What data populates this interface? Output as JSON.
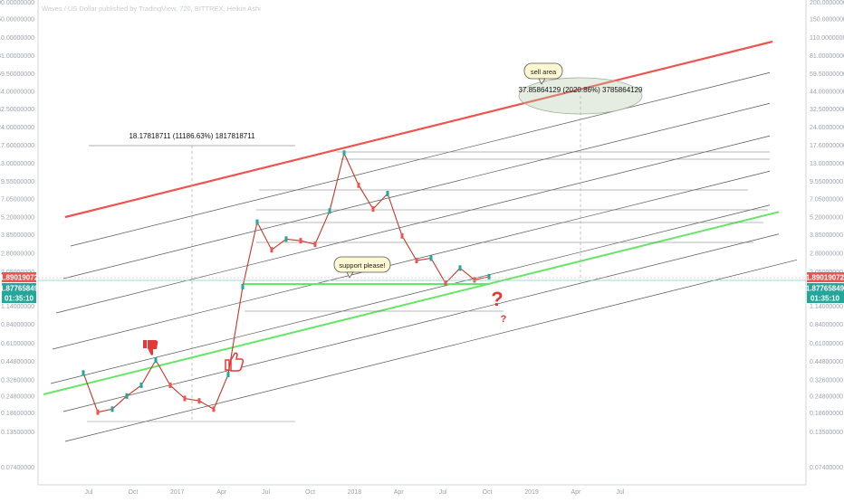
{
  "chart_data": {
    "type": "line",
    "title": "Waves / US Dollar published by TradingView, 720, BITTREX, Heikin Ashi",
    "y_scale": "log",
    "y_axis_ticks": [
      "0.07400000",
      "0.13500000",
      "0.18600000",
      "0.24800000",
      "0.32600000",
      "0.44800000",
      "0.61000000",
      "0.84000000",
      "1.14000000",
      "1.55000000",
      "2.05000000",
      "2.80000000",
      "3.85000000",
      "5.20000000",
      "7.05000000",
      "9.55000000",
      "13.00000000",
      "17.60000000",
      "24.00000000",
      "32.50000000",
      "44.00000000",
      "59.50000000",
      "81.00000000",
      "110.00000000",
      "150.00000000",
      "200.00000000"
    ],
    "x_axis_ticks": [
      "Jul",
      "Oct",
      "2017",
      "Apr",
      "Jul",
      "Oct",
      "2018",
      "Apr",
      "Jul",
      "Oct",
      "2019",
      "Apr",
      "Jul"
    ],
    "price_tags": [
      {
        "label": "1.89019072",
        "color": "#ef5350"
      },
      {
        "label": "1.87765849",
        "color": "#26a69a"
      },
      {
        "label": "01:35:10",
        "color": "#26a69a"
      }
    ],
    "annotations": {
      "measure_1": "18.17818711 (11186.63%) 1817818711",
      "measure_2": "37.85864129 (2020.86%) 3785864129",
      "sell_bubble": "sell area",
      "support_bubble": "support please!",
      "question_big": "?",
      "question_small": "?"
    },
    "price_series": {
      "name": "WAVESUSD",
      "x": [
        "2016-06",
        "2016-07",
        "2016-08",
        "2016-09",
        "2016-10",
        "2016-11",
        "2016-12",
        "2017-01",
        "2017-02",
        "2017-03",
        "2017-04",
        "2017-05",
        "2017-06",
        "2017-07",
        "2017-08",
        "2017-09",
        "2017-10",
        "2017-11",
        "2017-12",
        "2018-01",
        "2018-02",
        "2018-03",
        "2018-04",
        "2018-05",
        "2018-06",
        "2018-07",
        "2018-08",
        "2018-09",
        "2018-10"
      ],
      "values": [
        0.37,
        0.19,
        0.2,
        0.25,
        0.3,
        0.46,
        0.3,
        0.24,
        0.23,
        0.2,
        0.36,
        1.6,
        4.8,
        3.0,
        3.6,
        3.5,
        3.3,
        5.8,
        15.5,
        9.0,
        6.0,
        7.8,
        3.8,
        2.5,
        2.6,
        1.7,
        2.2,
        1.8,
        1.9
      ]
    },
    "grid": false,
    "colors": {
      "resistance": "#ef5350",
      "support": "#66e666",
      "channel": "#404040"
    }
  }
}
